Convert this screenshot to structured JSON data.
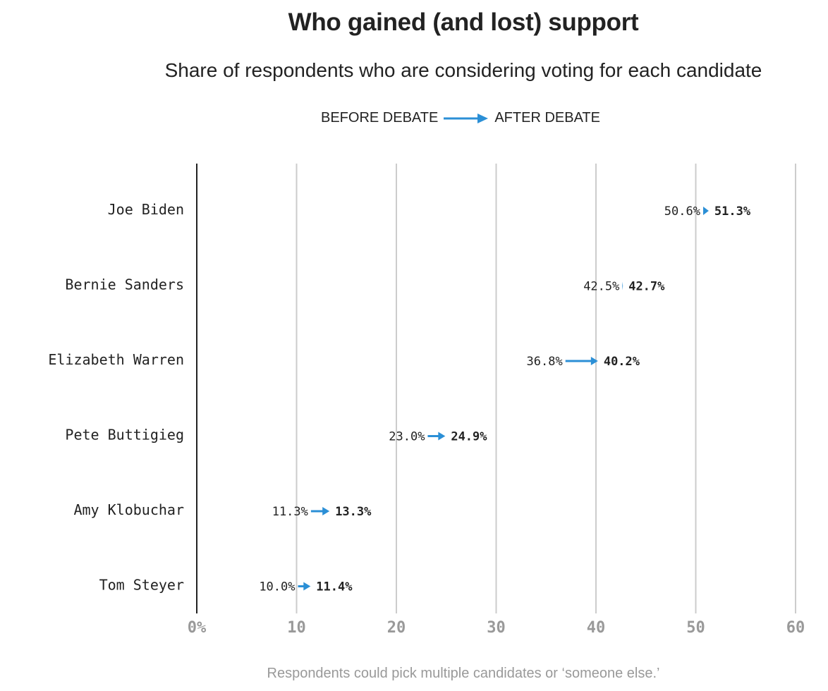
{
  "chart_data": {
    "type": "arrow-dot",
    "title": "Who gained (and lost) support",
    "subtitle": "Share of respondents who are considering voting for each candidate",
    "legend": {
      "before_label": "BEFORE DEBATE",
      "after_label": "AFTER DEBATE",
      "placement": "top-center"
    },
    "xlim": [
      0,
      60
    ],
    "xticks": [
      {
        "value": 0,
        "label": "0%"
      },
      {
        "value": 10,
        "label": "10"
      },
      {
        "value": 20,
        "label": "20"
      },
      {
        "value": 30,
        "label": "30"
      },
      {
        "value": 40,
        "label": "40"
      },
      {
        "value": 50,
        "label": "50"
      },
      {
        "value": 60,
        "label": "60"
      }
    ],
    "grid": true,
    "series": [
      {
        "category": "Joe Biden",
        "before": 50.6,
        "after": 51.3,
        "before_label": "50.6%",
        "after_label": "51.3%"
      },
      {
        "category": "Bernie Sanders",
        "before": 42.5,
        "after": 42.7,
        "before_label": "42.5%",
        "after_label": "42.7%"
      },
      {
        "category": "Elizabeth Warren",
        "before": 36.8,
        "after": 40.2,
        "before_label": "36.8%",
        "after_label": "40.2%"
      },
      {
        "category": "Pete Buttigieg",
        "before": 23.0,
        "after": 24.9,
        "before_label": "23.0%",
        "after_label": "24.9%"
      },
      {
        "category": "Amy Klobuchar",
        "before": 11.3,
        "after": 13.3,
        "before_label": "11.3%",
        "after_label": "13.3%"
      },
      {
        "category": "Tom Steyer",
        "before": 10.0,
        "after": 11.4,
        "before_label": "10.0%",
        "after_label": "11.4%"
      }
    ],
    "colors": {
      "arrow": "#2b8fd6",
      "grid": "#cccccc",
      "axis": "#222222",
      "tick_label": "#999999"
    },
    "footnote": "Respondents could pick multiple candidates or ‘someone else.’"
  }
}
